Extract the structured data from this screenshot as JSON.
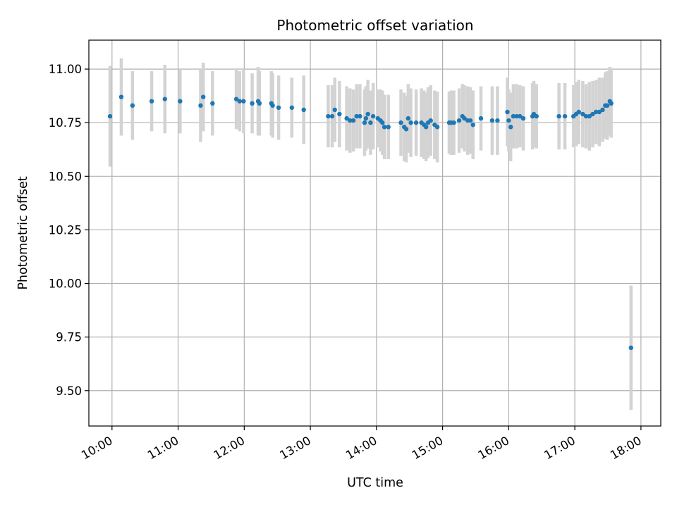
{
  "chart_data": {
    "type": "scatter",
    "title": "Photometric offset variation",
    "xlabel": "UTC time",
    "ylabel": "Photometric offset",
    "grid": true,
    "legend": "none",
    "xlim": [
      9.65,
      18.3
    ],
    "ylim": [
      9.335,
      11.135
    ],
    "x_ticks": [
      10,
      11,
      12,
      13,
      14,
      15,
      16,
      17,
      18
    ],
    "x_tick_labels": [
      "10:00",
      "11:00",
      "12:00",
      "13:00",
      "14:00",
      "15:00",
      "16:00",
      "17:00",
      "18:00"
    ],
    "y_ticks": [
      9.5,
      9.75,
      10.0,
      10.25,
      10.5,
      10.75,
      11.0
    ],
    "y_tick_labels": [
      "9.50",
      "9.75",
      "10.00",
      "10.25",
      "10.50",
      "10.75",
      "11.00"
    ],
    "colors": {
      "point": "#1f77b4",
      "errorbar": "#d3d3d3",
      "grid": "#b0b0b0"
    },
    "series": [
      {
        "name": "offset",
        "points": [
          [
            9.97,
            10.78,
            0.235
          ],
          [
            10.14,
            10.87,
            0.18
          ],
          [
            10.31,
            10.83,
            0.16
          ],
          [
            10.6,
            10.85,
            0.14
          ],
          [
            10.8,
            10.86,
            0.16
          ],
          [
            11.03,
            10.85,
            0.15
          ],
          [
            11.34,
            10.83,
            0.17
          ],
          [
            11.38,
            10.87,
            0.16
          ],
          [
            11.52,
            10.84,
            0.15
          ],
          [
            11.88,
            10.86,
            0.14
          ],
          [
            11.93,
            10.85,
            0.14
          ],
          [
            11.99,
            10.85,
            0.15
          ],
          [
            12.12,
            10.84,
            0.14
          ],
          [
            12.21,
            10.85,
            0.16
          ],
          [
            12.23,
            10.84,
            0.15
          ],
          [
            12.41,
            10.84,
            0.15
          ],
          [
            12.43,
            10.83,
            0.15
          ],
          [
            12.52,
            10.82,
            0.15
          ],
          [
            12.72,
            10.82,
            0.14
          ],
          [
            12.9,
            10.81,
            0.16
          ],
          [
            13.27,
            10.78,
            0.145
          ],
          [
            13.33,
            10.78,
            0.145
          ],
          [
            13.37,
            10.81,
            0.15
          ],
          [
            13.44,
            10.79,
            0.155
          ],
          [
            13.55,
            10.77,
            0.15
          ],
          [
            13.6,
            10.76,
            0.15
          ],
          [
            13.65,
            10.76,
            0.145
          ],
          [
            13.7,
            10.78,
            0.15
          ],
          [
            13.75,
            10.78,
            0.15
          ],
          [
            13.82,
            10.75,
            0.155
          ],
          [
            13.84,
            10.77,
            0.15
          ],
          [
            13.87,
            10.79,
            0.16
          ],
          [
            13.91,
            10.75,
            0.15
          ],
          [
            13.95,
            10.78,
            0.155
          ],
          [
            14.02,
            10.77,
            0.135
          ],
          [
            14.06,
            10.76,
            0.145
          ],
          [
            14.09,
            10.75,
            0.15
          ],
          [
            14.12,
            10.73,
            0.15
          ],
          [
            14.18,
            10.73,
            0.15
          ],
          [
            14.37,
            10.75,
            0.155
          ],
          [
            14.42,
            10.73,
            0.16
          ],
          [
            14.45,
            10.72,
            0.155
          ],
          [
            14.48,
            10.77,
            0.16
          ],
          [
            14.52,
            10.75,
            0.16
          ],
          [
            14.6,
            10.75,
            0.155
          ],
          [
            14.68,
            10.75,
            0.16
          ],
          [
            14.72,
            10.74,
            0.16
          ],
          [
            14.75,
            10.73,
            0.16
          ],
          [
            14.78,
            10.75,
            0.165
          ],
          [
            14.82,
            10.76,
            0.165
          ],
          [
            14.88,
            10.74,
            0.16
          ],
          [
            14.92,
            10.73,
            0.165
          ],
          [
            15.1,
            10.75,
            0.145
          ],
          [
            15.13,
            10.75,
            0.15
          ],
          [
            15.17,
            10.75,
            0.15
          ],
          [
            15.25,
            10.76,
            0.15
          ],
          [
            15.3,
            10.78,
            0.15
          ],
          [
            15.33,
            10.77,
            0.155
          ],
          [
            15.38,
            10.76,
            0.16
          ],
          [
            15.42,
            10.76,
            0.155
          ],
          [
            15.46,
            10.74,
            0.16
          ],
          [
            15.58,
            10.77,
            0.15
          ],
          [
            15.75,
            10.76,
            0.16
          ],
          [
            15.83,
            10.76,
            0.16
          ],
          [
            15.98,
            10.8,
            0.16
          ],
          [
            16.0,
            10.76,
            0.145
          ],
          [
            16.03,
            10.73,
            0.16
          ],
          [
            16.07,
            10.78,
            0.15
          ],
          [
            16.12,
            10.78,
            0.15
          ],
          [
            16.17,
            10.78,
            0.145
          ],
          [
            16.22,
            10.77,
            0.15
          ],
          [
            16.36,
            10.78,
            0.155
          ],
          [
            16.38,
            10.79,
            0.155
          ],
          [
            16.42,
            10.78,
            0.15
          ],
          [
            16.76,
            10.78,
            0.155
          ],
          [
            16.85,
            10.78,
            0.155
          ],
          [
            16.98,
            10.78,
            0.145
          ],
          [
            17.02,
            10.79,
            0.15
          ],
          [
            17.06,
            10.8,
            0.15
          ],
          [
            17.12,
            10.79,
            0.155
          ],
          [
            17.17,
            10.78,
            0.15
          ],
          [
            17.22,
            10.78,
            0.16
          ],
          [
            17.27,
            10.79,
            0.155
          ],
          [
            17.32,
            10.8,
            0.15
          ],
          [
            17.37,
            10.8,
            0.16
          ],
          [
            17.42,
            10.81,
            0.15
          ],
          [
            17.46,
            10.83,
            0.155
          ],
          [
            17.49,
            10.83,
            0.16
          ],
          [
            17.53,
            10.85,
            0.16
          ],
          [
            17.55,
            10.84,
            0.16
          ],
          [
            17.85,
            9.7,
            0.29
          ]
        ]
      }
    ]
  }
}
